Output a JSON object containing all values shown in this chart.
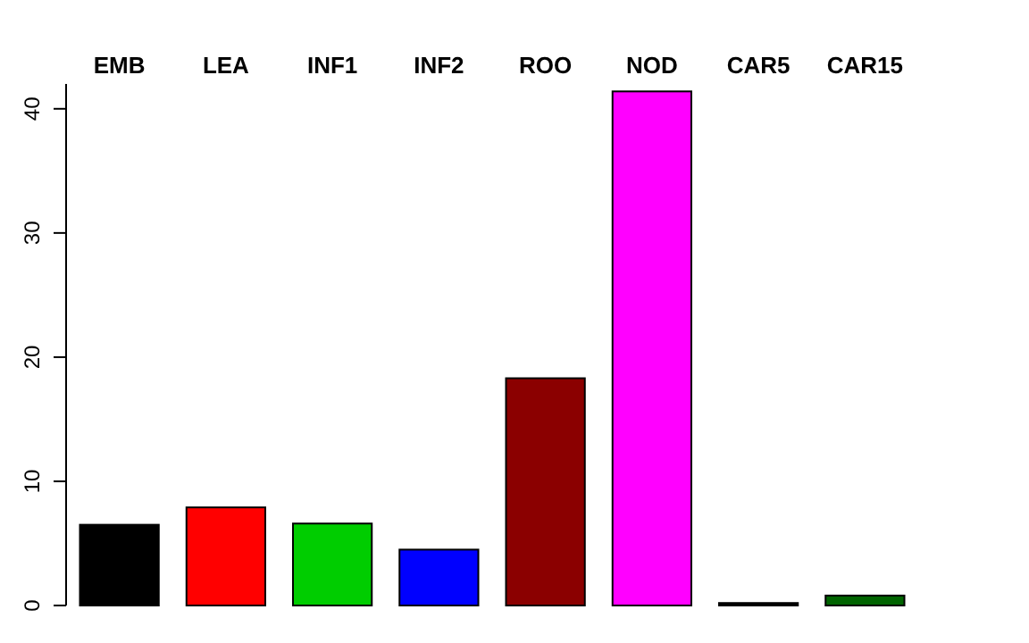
{
  "chart_data": {
    "type": "bar",
    "categories": [
      "EMB",
      "LEA",
      "INF1",
      "INF2",
      "ROO",
      "NOD",
      "CAR5",
      "CAR15"
    ],
    "values": [
      6.5,
      7.9,
      6.6,
      4.5,
      18.3,
      41.4,
      0.2,
      0.8
    ],
    "colors": [
      "#000000",
      "#ff0000",
      "#00cd00",
      "#0000ff",
      "#8b0000",
      "#ff00ff",
      "#000000",
      "#006400"
    ],
    "ylim": [
      0,
      42
    ],
    "yticks": [
      0,
      10,
      20,
      30,
      40
    ],
    "grid": false
  }
}
